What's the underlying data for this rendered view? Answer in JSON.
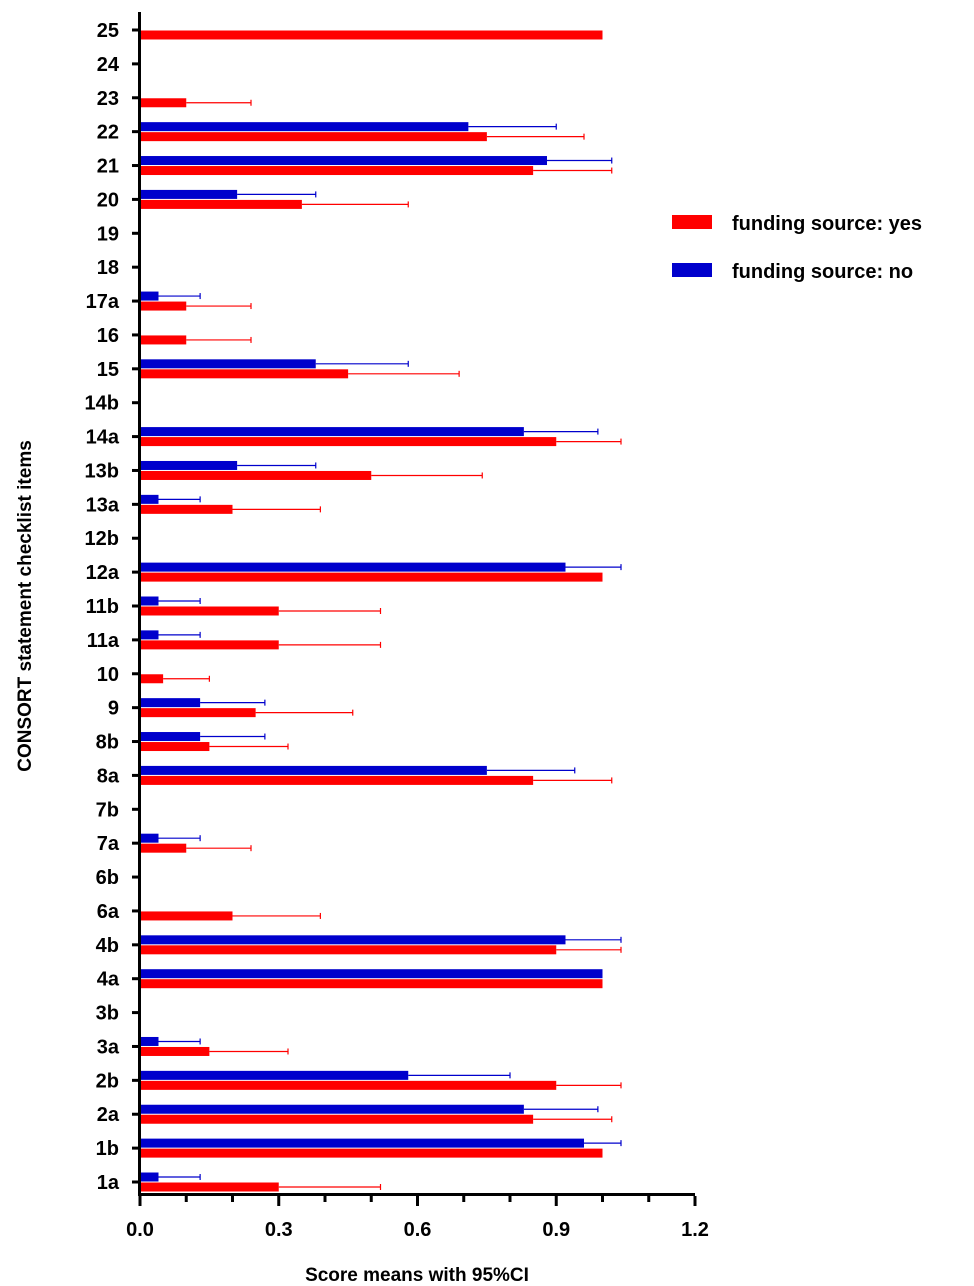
{
  "chart_data": {
    "type": "bar",
    "orientation": "horizontal",
    "xlabel": "Score means with 95%CI",
    "ylabel": "CONSORT statement checklist items",
    "xlim": [
      0,
      1.2
    ],
    "xticks": [
      "0.0",
      "0.3",
      "0.6",
      "0.9",
      "1.2"
    ],
    "grid": false,
    "legend_position": "right",
    "colors": {
      "yes": "#ff0000",
      "no": "#0000cc"
    },
    "categories": [
      "1a",
      "1b",
      "2a",
      "2b",
      "3a",
      "3b",
      "4a",
      "4b",
      "6a",
      "6b",
      "7a",
      "7b",
      "8a",
      "8b",
      "9",
      "10",
      "11a",
      "11b",
      "12a",
      "12b",
      "13a",
      "13b",
      "14a",
      "14b",
      "15",
      "16",
      "17a",
      "18",
      "19",
      "20",
      "21",
      "22",
      "23",
      "24",
      "25"
    ],
    "series": [
      {
        "name": "funding source: yes",
        "color": "#ff0000",
        "values": [
          0.3,
          1.0,
          0.85,
          0.9,
          0.15,
          null,
          1.0,
          0.9,
          0.2,
          null,
          0.1,
          null,
          0.85,
          0.15,
          0.25,
          0.05,
          0.3,
          0.3,
          1.0,
          null,
          0.2,
          0.5,
          0.9,
          null,
          0.45,
          0.1,
          0.1,
          null,
          null,
          0.35,
          0.85,
          0.75,
          0.1,
          null,
          1.0
        ],
        "ci_upper": [
          0.52,
          null,
          1.02,
          1.04,
          0.32,
          null,
          null,
          1.04,
          0.39,
          null,
          0.24,
          null,
          1.02,
          0.32,
          0.46,
          0.15,
          0.52,
          0.52,
          null,
          null,
          0.39,
          0.74,
          1.04,
          null,
          0.69,
          0.24,
          0.24,
          null,
          null,
          0.58,
          1.02,
          0.96,
          0.24,
          null,
          null
        ]
      },
      {
        "name": "funding source: no",
        "color": "#0000cc",
        "values": [
          0.04,
          0.96,
          0.83,
          0.58,
          0.04,
          null,
          1.0,
          0.92,
          null,
          null,
          0.04,
          null,
          0.75,
          0.13,
          0.13,
          null,
          0.04,
          0.04,
          0.92,
          null,
          0.04,
          0.21,
          0.83,
          null,
          0.38,
          null,
          0.04,
          null,
          null,
          0.21,
          0.88,
          0.71,
          null,
          null,
          null
        ],
        "ci_upper": [
          0.13,
          1.04,
          0.99,
          0.8,
          0.13,
          null,
          null,
          1.04,
          null,
          null,
          0.13,
          null,
          0.94,
          0.27,
          0.27,
          null,
          0.13,
          0.13,
          1.04,
          null,
          0.13,
          0.38,
          0.99,
          null,
          0.58,
          null,
          0.13,
          null,
          null,
          0.38,
          1.02,
          0.9,
          null,
          null,
          null
        ]
      }
    ]
  }
}
